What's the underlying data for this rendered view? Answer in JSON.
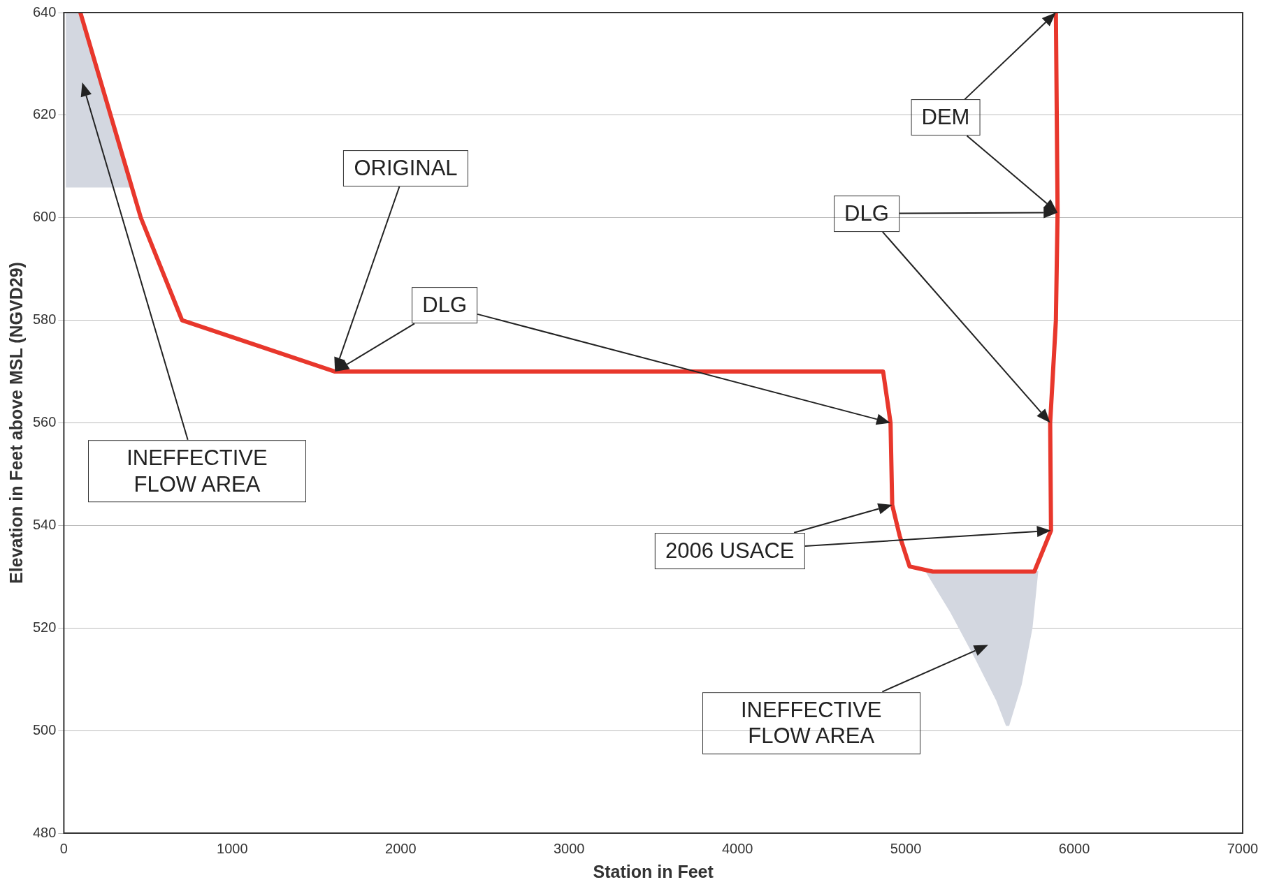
{
  "chart_data": {
    "type": "line",
    "xlabel": "Station in Feet",
    "ylabel": "Elevation in Feet above MSL (NGVD29)",
    "series": [
      {
        "color": "#e8372c",
        "x": [
          98,
          457,
          702,
          1610,
          4865,
          4909,
          4919,
          4963,
          5022,
          5160,
          5763,
          5862,
          5857,
          5891,
          5901,
          5891
        ],
        "values": [
          640,
          600,
          580,
          570,
          570,
          560,
          544,
          538,
          532,
          531,
          531,
          539,
          560,
          580,
          601,
          640
        ]
      },
      {
        "type": "area",
        "color": "#d3d7e0",
        "x": [
          15,
          98,
          403,
          15,
          15
        ],
        "values": [
          640,
          640,
          606,
          606,
          640
        ]
      },
      {
        "type": "area",
        "color": "#d3d7e0",
        "x": [
          5120,
          5783,
          5749,
          5685,
          5611,
          5597,
          5538,
          5415,
          5268,
          5120
        ],
        "values": [
          531,
          531,
          520,
          509,
          501,
          501,
          506,
          514,
          523,
          531
        ]
      }
    ],
    "xlim": [
      0,
      7000
    ],
    "xticks": [
      0,
      1000,
      2000,
      3000,
      4000,
      5000,
      6000,
      7000
    ],
    "ylim": [
      480,
      640
    ],
    "yticks": [
      480,
      500,
      520,
      540,
      560,
      580,
      600,
      620,
      640
    ],
    "grid": "y",
    "marker": "none",
    "line_style": "solid",
    "legend": false,
    "annotations": [
      "ORIGINAL",
      "DLG",
      "INEFFECTIVE FLOW AREA",
      "DEM",
      "DLG",
      "2006 USACE",
      "INEFFECTIVE FLOW AREA"
    ]
  }
}
